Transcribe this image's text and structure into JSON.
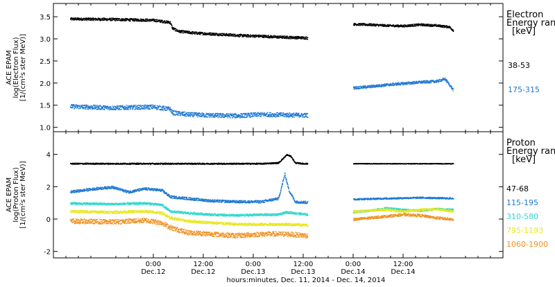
{
  "chart_data": [
    {
      "type": "scatter",
      "panel": "top",
      "ylabel_lines": [
        "ACE EPAM",
        "log(Electron Flux)",
        "[1/(cm²s ster MeV)]"
      ],
      "ylim": [
        0.9,
        3.8
      ],
      "yticks": [
        "1.0",
        "1.5",
        "2.0",
        "2.5",
        "3.0",
        "3.5"
      ],
      "yticks_values": [
        1.0,
        1.5,
        2.0,
        2.5,
        3.0,
        3.5
      ],
      "legend_title": [
        "Electron",
        "Energy ran",
        "[keV]"
      ],
      "series": [
        {
          "name": "38-53",
          "color": "#000000",
          "segments": [
            {
              "x": [
                -20,
                -10,
                0,
                4,
                4.5,
                6,
                10,
                14,
                18,
                22,
                26,
                30,
                34,
                37
              ],
              "y": [
                3.46,
                3.45,
                3.43,
                3.38,
                3.25,
                3.18,
                3.14,
                3.12,
                3.1,
                3.08,
                3.07,
                3.05,
                3.04,
                3.03
              ],
              "noise": 0.03
            },
            {
              "x": [
                48,
                52,
                56,
                60,
                64,
                68,
                71,
                72
              ],
              "y": [
                3.34,
                3.33,
                3.31,
                3.3,
                3.33,
                3.31,
                3.28,
                3.2
              ],
              "noise": 0.025
            }
          ]
        },
        {
          "name": "175-315",
          "color": "#1e78d2",
          "segments": [
            {
              "x": [
                -20,
                -10,
                0,
                4,
                4.5,
                8,
                14,
                20,
                26,
                32,
                37
              ],
              "y": [
                1.48,
                1.45,
                1.47,
                1.42,
                1.34,
                1.3,
                1.28,
                1.27,
                1.3,
                1.29,
                1.28
              ],
              "noise": 0.05
            },
            {
              "x": [
                48,
                52,
                56,
                60,
                64,
                68,
                70,
                71,
                72
              ],
              "y": [
                1.9,
                1.93,
                1.97,
                2.0,
                2.03,
                2.05,
                2.1,
                1.98,
                1.85
              ],
              "noise": 0.03
            }
          ]
        }
      ]
    },
    {
      "type": "scatter",
      "panel": "bottom",
      "ylabel_lines": [
        "ACE EPAM",
        "log(Proton Flux)",
        "[1/(cm²s ster MeV)]"
      ],
      "ylim": [
        -2.4,
        5.4
      ],
      "yticks": [
        "-2",
        "0",
        "2",
        "4"
      ],
      "yticks_values": [
        -2,
        0,
        2,
        4
      ],
      "legend_title": [
        "Proton",
        "Energy ran",
        "[keV]"
      ],
      "series": [
        {
          "name": "47-68",
          "color": "#000000",
          "segments": [
            {
              "x": [
                -20,
                0,
                10,
                20,
                26,
                30,
                32,
                33,
                34,
                36,
                37
              ],
              "y": [
                3.45,
                3.45,
                3.45,
                3.45,
                3.45,
                3.5,
                4.0,
                3.9,
                3.5,
                3.45,
                3.45
              ],
              "noise": 0.04
            },
            {
              "x": [
                48,
                56,
                64,
                72
              ],
              "y": [
                3.45,
                3.45,
                3.45,
                3.45
              ],
              "noise": 0.02
            }
          ]
        },
        {
          "name": "115-195",
          "color": "#1e78d2",
          "segments": [
            {
              "x": [
                -20,
                -14,
                -10,
                -6,
                -2,
                2,
                4,
                8,
                14,
                20,
                26,
                30,
                31.5,
                32.5,
                34,
                37
              ],
              "y": [
                1.7,
                1.9,
                2.0,
                1.7,
                1.9,
                1.8,
                1.4,
                1.3,
                1.15,
                1.1,
                1.1,
                1.3,
                2.8,
                1.8,
                1.1,
                1.05
              ],
              "noise": 0.08
            },
            {
              "x": [
                48,
                56,
                64,
                72
              ],
              "y": [
                1.25,
                1.3,
                1.35,
                1.3
              ],
              "noise": 0.05
            }
          ]
        },
        {
          "name": "310-580",
          "color": "#2fd8cc",
          "segments": [
            {
              "x": [
                -20,
                -10,
                -2,
                2,
                4,
                8,
                14,
                20,
                26,
                30,
                32,
                37
              ],
              "y": [
                1.0,
                0.95,
                1.0,
                0.9,
                0.5,
                0.4,
                0.3,
                0.25,
                0.3,
                0.3,
                0.45,
                0.3
              ],
              "noise": 0.07
            },
            {
              "x": [
                48,
                52,
                56,
                60,
                64,
                68,
                72
              ],
              "y": [
                0.45,
                0.55,
                0.7,
                0.6,
                0.55,
                0.65,
                0.6
              ],
              "noise": 0.06
            }
          ]
        },
        {
          "name": "795-1193",
          "color": "#e8e81e",
          "segments": [
            {
              "x": [
                -20,
                -10,
                -2,
                2,
                4,
                8,
                14,
                20,
                26,
                32,
                37
              ],
              "y": [
                0.5,
                0.45,
                0.5,
                0.4,
                0.1,
                -0.1,
                -0.2,
                -0.3,
                -0.3,
                -0.3,
                -0.35
              ],
              "noise": 0.08
            },
            {
              "x": [
                48,
                52,
                56,
                60,
                64,
                68,
                72
              ],
              "y": [
                0.5,
                0.55,
                0.6,
                0.5,
                0.6,
                0.65,
                0.5
              ],
              "noise": 0.07
            }
          ]
        },
        {
          "name": "1060-1900",
          "color": "#f0901e",
          "segments": [
            {
              "x": [
                -20,
                -10,
                -2,
                2,
                4,
                8,
                14,
                20,
                26,
                32,
                37
              ],
              "y": [
                -0.1,
                -0.15,
                -0.05,
                -0.2,
                -0.5,
                -0.8,
                -0.9,
                -1.0,
                -0.9,
                -0.9,
                -1.0
              ],
              "noise": 0.15
            },
            {
              "x": [
                48,
                52,
                56,
                60,
                64,
                68,
                72
              ],
              "y": [
                0.0,
                0.1,
                0.2,
                0.3,
                0.25,
                0.1,
                0.0
              ],
              "noise": 0.08
            }
          ]
        }
      ]
    }
  ],
  "xaxis": {
    "xlim": [
      -24,
      84
    ],
    "ticks": [
      {
        "value": 0,
        "line1": "0:00",
        "line2": "Dec.12"
      },
      {
        "value": 12,
        "line1": "12:00",
        "line2": "Dec.12"
      },
      {
        "value": 24,
        "line1": "0:00",
        "line2": "Dec.13"
      },
      {
        "value": 36,
        "line1": "12:00",
        "line2": "Dec.13"
      },
      {
        "value": 48,
        "line1": "0:00",
        "line2": "Dec.14"
      },
      {
        "value": 60,
        "line1": "12:00",
        "line2": "Dec.14"
      }
    ],
    "label": "hours:minutes, Dec. 11, 2014 - Dec. 14, 2014"
  }
}
